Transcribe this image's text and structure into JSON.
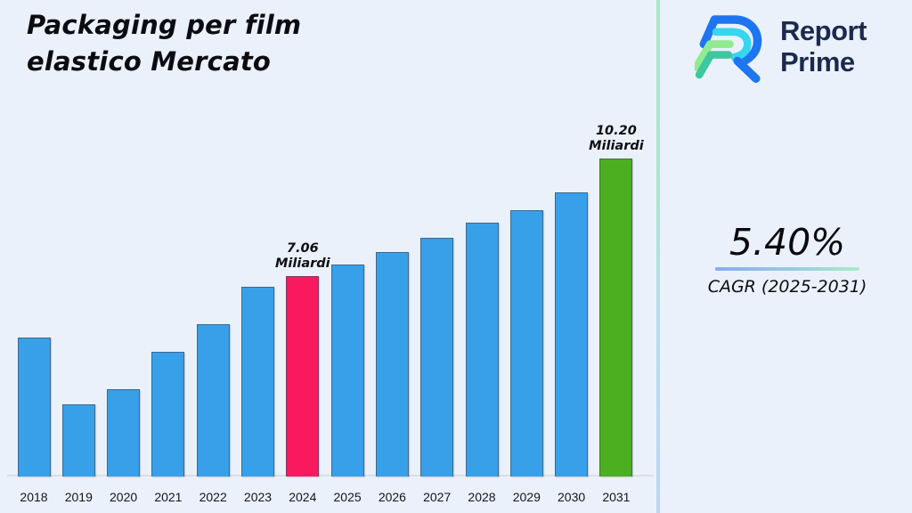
{
  "header": {
    "title_line1": "Packaging per film",
    "title_line2": "elastico Mercato"
  },
  "brand": {
    "name_line1": "Report",
    "name_line2": "Prime",
    "logo_icon": "report-prime-logo-icon"
  },
  "cagr": {
    "value": "5.40%",
    "label": "CAGR (2025-2031)"
  },
  "chart_data": {
    "type": "bar",
    "title": "Packaging per film elastico Mercato",
    "unit": "Miliardi",
    "categories": [
      "2018",
      "2019",
      "2020",
      "2021",
      "2022",
      "2023",
      "2024",
      "2025",
      "2026",
      "2027",
      "2028",
      "2029",
      "2030",
      "2031"
    ],
    "values": [
      5.42,
      3.63,
      4.04,
      5.04,
      5.78,
      6.77,
      7.06,
      7.37,
      7.7,
      8.08,
      8.49,
      8.82,
      9.3,
      10.2
    ],
    "bar_colors": {
      "default": "#38A0E8",
      "2024": "#F9195E",
      "2031": "#4CAF1F"
    },
    "data_labels": [
      {
        "category": "2024",
        "lines": [
          "7.06",
          "Miliardi"
        ]
      },
      {
        "category": "2031",
        "lines": [
          "10.20",
          "Miliardi"
        ]
      }
    ],
    "xlabel": "",
    "ylabel": "",
    "legend": false,
    "grid": false,
    "y_axis_visible": false
  },
  "colors": {
    "background": "#EAF1FB",
    "axis_line": "#D9DEE9",
    "title_text": "#0c0c10",
    "brand_navy": "#1B2B4E",
    "divider_top": "#A8E9C6",
    "divider_bottom": "#BCD7F3",
    "underline_left": "#86ACEF",
    "underline_right": "#A9ECC6",
    "logo_blue": "#1E75F0",
    "logo_cyan": "#35D6EE",
    "logo_green": "#90EB90",
    "logo_teal": "#3FC79E"
  }
}
